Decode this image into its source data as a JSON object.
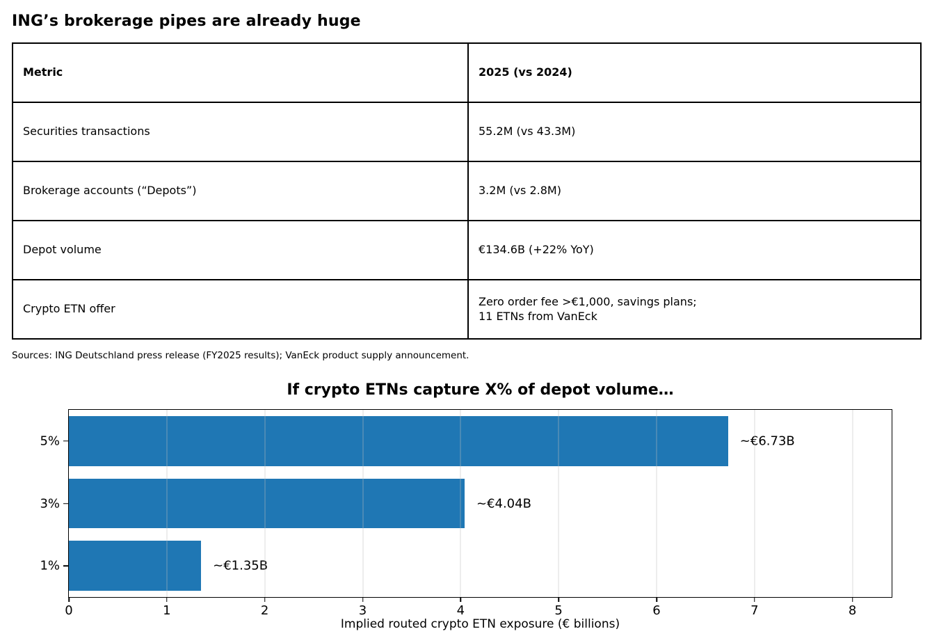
{
  "page": {
    "title": "ING’s brokerage pipes are already huge",
    "sources": "Sources: ING Deutschland press release (FY2025 results); VanEck product supply announcement."
  },
  "table": {
    "headers": [
      "Metric",
      "2025 (vs 2024)"
    ],
    "rows": [
      [
        "Securities transactions",
        "55.2M (vs 43.3M)"
      ],
      [
        "Brokerage accounts (“Depots”)",
        "3.2M (vs 2.8M)"
      ],
      [
        "Depot volume",
        "€134.6B (+22% YoY)"
      ],
      [
        "Crypto ETN offer",
        "Zero order fee >€1,000, savings plans;\n11 ETNs from VanEck"
      ]
    ]
  },
  "chart_data": {
    "type": "bar",
    "orientation": "horizontal",
    "title": "If crypto ETNs capture X% of depot volume…",
    "categories": [
      "5%",
      "3%",
      "1%"
    ],
    "values": [
      6.73,
      4.04,
      1.35
    ],
    "bar_labels": [
      "~€6.73B",
      "~€4.04B",
      "~€1.35B"
    ],
    "xlabel": "Implied routed crypto ETN exposure (€ billions)",
    "xlim": [
      0,
      8.4
    ],
    "xticks": [
      0,
      1,
      2,
      3,
      4,
      5,
      6,
      7,
      8
    ],
    "bar_color": "#1f77b4",
    "grid": true,
    "legend": "none"
  }
}
